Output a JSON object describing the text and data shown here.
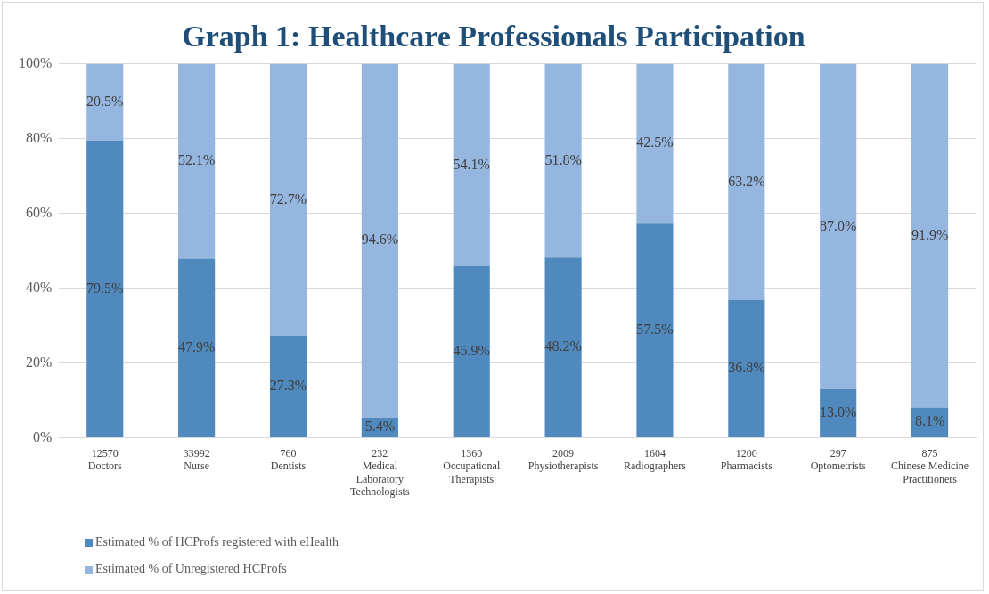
{
  "chart_data": {
    "type": "bar",
    "title": "Graph 1: Healthcare Professionals Participation",
    "stacked": true,
    "grid": "y",
    "legend": "bottom left",
    "categories": [
      "12570\nDoctors",
      "33992\nNurse",
      "760\nDentists",
      "232\nMedical\nLaboratory\nTechnologists",
      "1360\nOccupational\nTherapists",
      "2009\nPhysiotherapists",
      "1604\nRadiographers",
      "1200\nPharmacists",
      "297\nOptometrists",
      "875\nChinese Medicine\nPractitioners"
    ],
    "ylim": [
      0,
      100
    ],
    "yticks": [
      {
        "value": 0,
        "label": "0%"
      },
      {
        "value": 20,
        "label": "20%"
      },
      {
        "value": 40,
        "label": "40%"
      },
      {
        "value": 60,
        "label": "60%"
      },
      {
        "value": 80,
        "label": "80%"
      },
      {
        "value": 100,
        "label": "100%"
      }
    ],
    "series": [
      {
        "name": "Estimated % of HCProfs registered with eHealth",
        "color": "#4f89bd",
        "values": [
          79.5,
          47.9,
          27.3,
          5.4,
          45.9,
          48.2,
          57.5,
          36.8,
          13.0,
          8.1
        ],
        "value_labels": [
          "79.5%",
          "47.9%",
          "27.3%",
          "5.4%",
          "45.9%",
          "48.2%",
          "57.5%",
          "36.8%",
          "13.0%",
          "8.1%"
        ]
      },
      {
        "name": "Estimated % of Unregistered HCProfs",
        "color": "#95b6df",
        "values": [
          20.5,
          52.1,
          72.7,
          94.6,
          54.1,
          51.8,
          42.5,
          63.2,
          87.0,
          91.9
        ],
        "value_labels": [
          "20.5%",
          "52.1%",
          "72.7%",
          "94.6%",
          "54.1%",
          "51.8%",
          "42.5%",
          "63.2%",
          "87.0%",
          "91.9%"
        ]
      }
    ]
  }
}
